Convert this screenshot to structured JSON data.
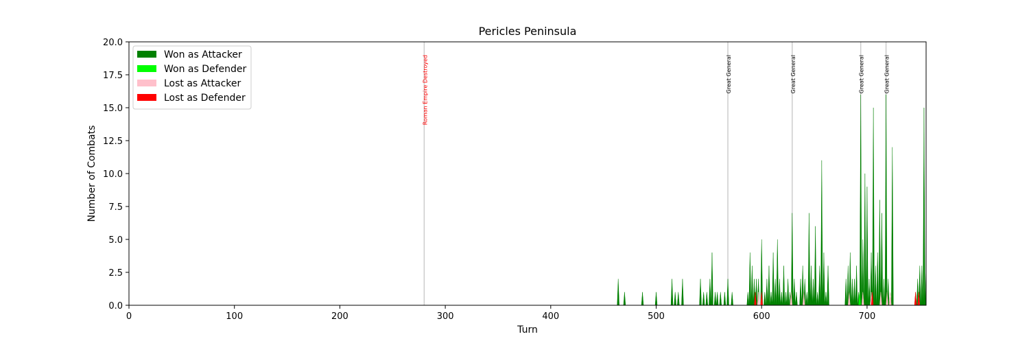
{
  "chart_data": {
    "type": "area",
    "title": "Pericles Peninsula",
    "xlabel": "Turn",
    "ylabel": "Number of Combats",
    "xlim": [
      0,
      756
    ],
    "ylim": [
      0,
      20
    ],
    "x_ticks": [
      0,
      100,
      200,
      300,
      400,
      500,
      600,
      700
    ],
    "y_ticks": [
      0.0,
      2.5,
      5.0,
      7.5,
      10.0,
      12.5,
      15.0,
      17.5,
      20.0
    ],
    "grid": false,
    "legend_position": "top-left",
    "legend": [
      {
        "label": "Won as Attacker",
        "color": "#008000"
      },
      {
        "label": "Won as Defender",
        "color": "#00ff00"
      },
      {
        "label": "Lost as Attacker",
        "color": "#ffc0cb"
      },
      {
        "label": "Lost as Defender",
        "color": "#ff0000"
      }
    ],
    "annotations": [
      {
        "x": 280,
        "text": "Roman Empire Destroyed",
        "color": "#ff0000"
      },
      {
        "x": 568,
        "text": "Great General",
        "color": "#000000"
      },
      {
        "x": 629,
        "text": "Great General",
        "color": "#000000"
      },
      {
        "x": 694,
        "text": "Great General",
        "color": "#000000"
      },
      {
        "x": 718,
        "text": "Great General",
        "color": "#000000"
      }
    ],
    "series": [
      {
        "name": "Won as Attacker",
        "color": "#008000",
        "points": [
          [
            464,
            2
          ],
          [
            470,
            1
          ],
          [
            487,
            1
          ],
          [
            500,
            1
          ],
          [
            515,
            2
          ],
          [
            518,
            1
          ],
          [
            521,
            1
          ],
          [
            525,
            2
          ],
          [
            542,
            2
          ],
          [
            545,
            1
          ],
          [
            548,
            1
          ],
          [
            551,
            2
          ],
          [
            553,
            4
          ],
          [
            556,
            1
          ],
          [
            558,
            1
          ],
          [
            561,
            1
          ],
          [
            565,
            1
          ],
          [
            568,
            2
          ],
          [
            572,
            1
          ],
          [
            587,
            1
          ],
          [
            589,
            4
          ],
          [
            591,
            3
          ],
          [
            593,
            2
          ],
          [
            595,
            2
          ],
          [
            597,
            2
          ],
          [
            600,
            5
          ],
          [
            603,
            1
          ],
          [
            605,
            2
          ],
          [
            607,
            3
          ],
          [
            609,
            1
          ],
          [
            611,
            4
          ],
          [
            613,
            2
          ],
          [
            615,
            5
          ],
          [
            617,
            2
          ],
          [
            619,
            1
          ],
          [
            621,
            3
          ],
          [
            623,
            1
          ],
          [
            625,
            2
          ],
          [
            627,
            1
          ],
          [
            629,
            7
          ],
          [
            631,
            2
          ],
          [
            633,
            1
          ],
          [
            637,
            2
          ],
          [
            639,
            3
          ],
          [
            641,
            2
          ],
          [
            643,
            1
          ],
          [
            645,
            7
          ],
          [
            647,
            3
          ],
          [
            649,
            2
          ],
          [
            651,
            6
          ],
          [
            653,
            1
          ],
          [
            655,
            3
          ],
          [
            657,
            11
          ],
          [
            659,
            4
          ],
          [
            661,
            1
          ],
          [
            663,
            3
          ],
          [
            680,
            2
          ],
          [
            682,
            3
          ],
          [
            684,
            4
          ],
          [
            686,
            2
          ],
          [
            688,
            2
          ],
          [
            690,
            3
          ],
          [
            692,
            1
          ],
          [
            694,
            16
          ],
          [
            696,
            5
          ],
          [
            698,
            10
          ],
          [
            700,
            9
          ],
          [
            702,
            2
          ],
          [
            704,
            4
          ],
          [
            706,
            15
          ],
          [
            708,
            3
          ],
          [
            710,
            4
          ],
          [
            712,
            8
          ],
          [
            714,
            7
          ],
          [
            716,
            2
          ],
          [
            718,
            16
          ],
          [
            720,
            2
          ],
          [
            722,
            1
          ],
          [
            724,
            12
          ],
          [
            746,
            1
          ],
          [
            748,
            2
          ],
          [
            750,
            3
          ],
          [
            752,
            3
          ],
          [
            754,
            15
          ],
          [
            756,
            3
          ]
        ]
      },
      {
        "name": "Won as Defender",
        "color": "#00ff00",
        "points": [
          [
            693,
            1
          ]
        ]
      },
      {
        "name": "Lost as Attacker",
        "color": "#ffc0cb",
        "points": [
          [
            597,
            1
          ],
          [
            628,
            1
          ],
          [
            640,
            1
          ],
          [
            683,
            1
          ],
          [
            696,
            1
          ],
          [
            704,
            1
          ],
          [
            713,
            1
          ],
          [
            719,
            1
          ],
          [
            722,
            1
          ],
          [
            749,
            1
          ]
        ]
      },
      {
        "name": "Lost as Defender",
        "color": "#ff0000",
        "points": [
          [
            594,
            1
          ],
          [
            600,
            1
          ],
          [
            705,
            1
          ],
          [
            746,
            1
          ],
          [
            749,
            1
          ]
        ]
      }
    ]
  }
}
